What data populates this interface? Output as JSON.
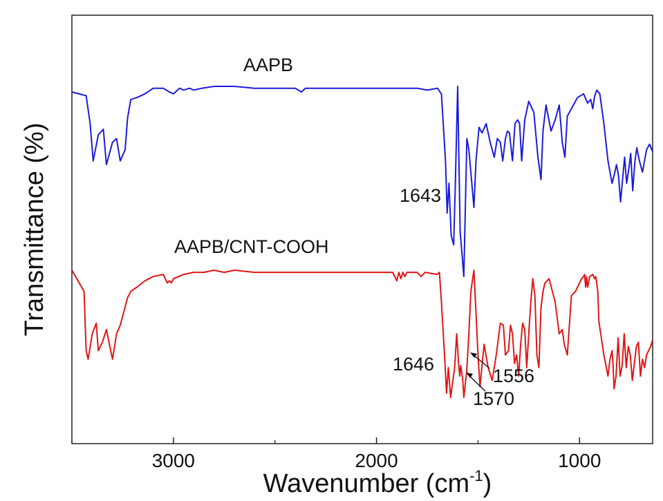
{
  "chart_data": {
    "type": "line",
    "xlabel": "Wavenumber (cm",
    "xlabel_sup": "-1",
    "xlabel_close": ")",
    "ylabel": "Transmittance (%)",
    "xlim": [
      3500,
      640
    ],
    "x_reversed": true,
    "xticks": [
      3000,
      2000,
      1000
    ],
    "xtick_labels": [
      "3000",
      "2000",
      "1000"
    ],
    "y_tick_labels_shown": false,
    "grid": false,
    "series": [
      {
        "name": "AAPB",
        "color": "#1a1adc",
        "x": [
          3500,
          3430,
          3410,
          3395,
          3370,
          3345,
          3330,
          3300,
          3280,
          3262,
          3238,
          3226,
          3210,
          3180,
          3140,
          3100,
          3050,
          3020,
          3000,
          2970,
          2950,
          2920,
          2900,
          2860,
          2800,
          2700,
          2600,
          2500,
          2400,
          2370,
          2350,
          2300,
          2200,
          2100,
          2000,
          1900,
          1850,
          1800,
          1750,
          1700,
          1680,
          1660,
          1652,
          1643,
          1632,
          1620,
          1612,
          1600,
          1588,
          1570,
          1555,
          1545,
          1520,
          1510,
          1495,
          1480,
          1460,
          1440,
          1420,
          1405,
          1390,
          1378,
          1365,
          1355,
          1345,
          1330,
          1318,
          1305,
          1295,
          1285,
          1270,
          1250,
          1225,
          1205,
          1190,
          1180,
          1165,
          1140,
          1120,
          1100,
          1085,
          1072,
          1060,
          1040,
          1010,
          980,
          960,
          945,
          935,
          925,
          915,
          900,
          880,
          860,
          840,
          828,
          818,
          808,
          798,
          788,
          778,
          768,
          758,
          748,
          738,
          728,
          718,
          705,
          690,
          670,
          655,
          640
        ],
        "y": [
          97,
          95,
          80,
          60,
          74,
          77,
          58,
          70,
          72,
          60,
          66,
          83,
          93,
          94,
          96,
          99,
          99,
          97,
          96,
          99,
          98,
          99,
          98,
          99,
          100,
          100,
          99,
          99,
          99,
          97,
          99,
          99,
          99,
          99,
          99,
          99,
          99,
          99,
          98,
          99,
          96,
          60,
          32,
          48,
          20,
          15,
          46,
          100,
          22,
          -2,
          72,
          66,
          35,
          60,
          78,
          75,
          80,
          70,
          62,
          72,
          70,
          60,
          72,
          76,
          75,
          60,
          80,
          82,
          80,
          60,
          82,
          92,
          86,
          62,
          50,
          76,
          90,
          76,
          82,
          90,
          70,
          62,
          84,
          88,
          94,
          96,
          91,
          93,
          88,
          95,
          98,
          96,
          80,
          60,
          48,
          53,
          58,
          52,
          38,
          50,
          62,
          48,
          55,
          64,
          44,
          59,
          67,
          60,
          54,
          66,
          69,
          65
        ]
      },
      {
        "name": "AAPB/CNT-COOH",
        "color": "#e01515",
        "x": [
          3500,
          3440,
          3430,
          3420,
          3400,
          3380,
          3370,
          3350,
          3330,
          3300,
          3280,
          3262,
          3240,
          3226,
          3210,
          3180,
          3140,
          3100,
          3050,
          3030,
          3020,
          3010,
          3000,
          2950,
          2900,
          2850,
          2800,
          2750,
          2700,
          2600,
          2500,
          2400,
          2300,
          2200,
          2100,
          2000,
          1920,
          1900,
          1890,
          1880,
          1870,
          1860,
          1850,
          1800,
          1780,
          1760,
          1700,
          1690,
          1680,
          1665,
          1655,
          1646,
          1635,
          1625,
          1615,
          1605,
          1595,
          1590,
          1585,
          1575,
          1570,
          1563,
          1556,
          1545,
          1535,
          1520,
          1510,
          1500,
          1490,
          1470,
          1450,
          1430,
          1410,
          1390,
          1375,
          1365,
          1350,
          1340,
          1330,
          1320,
          1310,
          1300,
          1290,
          1280,
          1270,
          1260,
          1250,
          1240,
          1230,
          1220,
          1210,
          1200,
          1190,
          1180,
          1170,
          1150,
          1120,
          1100,
          1085,
          1075,
          1060,
          1040,
          1020,
          1000,
          990,
          980,
          975,
          970,
          965,
          960,
          950,
          935,
          925,
          920,
          910,
          905,
          880,
          860,
          850,
          840,
          835,
          830,
          820,
          810,
          800,
          790,
          780,
          770,
          760,
          750,
          740,
          730,
          720,
          710,
          700,
          690,
          680,
          670,
          660,
          650,
          640
        ],
        "y": [
          100,
          90,
          62,
          58,
          70,
          75,
          62,
          66,
          72,
          58,
          70,
          74,
          82,
          87,
          90,
          92,
          95,
          97,
          98,
          94,
          95,
          94,
          96,
          98,
          99,
          99,
          100,
          99,
          100,
          99,
          99,
          99,
          99,
          99,
          99,
          99,
          99,
          95,
          99,
          96,
          99,
          97,
          99,
          99,
          97,
          99,
          98,
          99,
          85,
          60,
          42,
          54,
          40,
          47,
          54,
          70,
          55,
          50,
          55,
          48,
          40,
          46,
          52,
          70,
          90,
          100,
          80,
          60,
          45,
          65,
          54,
          48,
          60,
          75,
          74,
          60,
          62,
          74,
          70,
          56,
          60,
          50,
          65,
          75,
          72,
          54,
          70,
          85,
          96,
          88,
          60,
          54,
          82,
          90,
          94,
          96,
          85,
          70,
          72,
          65,
          60,
          88,
          90,
          94,
          96,
          97,
          98,
          92,
          97,
          92,
          97,
          98,
          96,
          97,
          90,
          76,
          60,
          50,
          58,
          62,
          56,
          44,
          50,
          68,
          50,
          55,
          70,
          54,
          64,
          60,
          48,
          56,
          64,
          66,
          50,
          58,
          54,
          60,
          62,
          64,
          67
        ]
      }
    ],
    "series_labels": [
      "AAPB",
      "AAPB/CNT-COOH"
    ],
    "annotations": [
      {
        "text": "1643",
        "x": 1643
      },
      {
        "text": "1646",
        "x": 1646
      },
      {
        "text": "1570",
        "x": 1570
      },
      {
        "text": "1556",
        "x": 1556
      }
    ]
  }
}
